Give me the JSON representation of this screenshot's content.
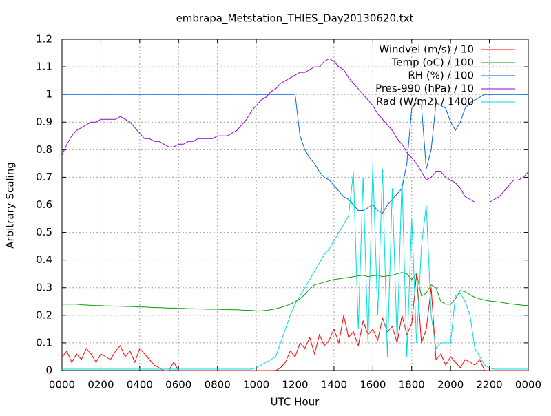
{
  "chart_data": {
    "type": "line",
    "title": "embrapa_Metstation_THIES_Day20130620.txt",
    "xlabel": "UTC Hour",
    "ylabel": "Arbitrary Scaling",
    "xlim": [
      0,
      24
    ],
    "ylim": [
      0,
      1.2
    ],
    "xticks": [
      {
        "value": 0,
        "label": "0000"
      },
      {
        "value": 2,
        "label": "0200"
      },
      {
        "value": 4,
        "label": "0400"
      },
      {
        "value": 6,
        "label": "0600"
      },
      {
        "value": 8,
        "label": "0800"
      },
      {
        "value": 10,
        "label": "1000"
      },
      {
        "value": 12,
        "label": "1200"
      },
      {
        "value": 14,
        "label": "1400"
      },
      {
        "value": 16,
        "label": "1600"
      },
      {
        "value": 18,
        "label": "1800"
      },
      {
        "value": 20,
        "label": "2000"
      },
      {
        "value": 22,
        "label": "2200"
      },
      {
        "value": 24,
        "label": "0000"
      }
    ],
    "yticks": [
      0,
      0.1,
      0.2,
      0.3,
      0.4,
      0.5,
      0.6,
      0.7,
      0.8,
      0.9,
      1,
      1.1,
      1.2
    ],
    "grid": true,
    "legend": "top-right",
    "x": [
      0,
      0.25,
      0.5,
      0.75,
      1,
      1.25,
      1.5,
      1.75,
      2,
      2.25,
      2.5,
      2.75,
      3,
      3.25,
      3.5,
      3.75,
      4,
      4.25,
      4.5,
      4.75,
      5,
      5.25,
      5.5,
      5.75,
      6,
      6.25,
      6.5,
      6.75,
      7,
      7.25,
      7.5,
      7.75,
      8,
      8.25,
      8.5,
      8.75,
      9,
      9.25,
      9.5,
      9.75,
      10,
      10.25,
      10.5,
      10.75,
      11,
      11.25,
      11.5,
      11.75,
      12,
      12.25,
      12.5,
      12.75,
      13,
      13.25,
      13.5,
      13.75,
      14,
      14.25,
      14.5,
      14.75,
      15,
      15.25,
      15.5,
      15.75,
      16,
      16.25,
      16.5,
      16.75,
      17,
      17.25,
      17.5,
      17.75,
      18,
      18.25,
      18.5,
      18.75,
      19,
      19.25,
      19.5,
      19.75,
      20,
      20.25,
      20.5,
      20.75,
      21,
      21.25,
      21.5,
      21.75,
      22,
      22.25,
      22.5,
      22.75,
      23,
      23.25,
      23.5,
      23.75,
      24
    ],
    "series": [
      {
        "name": "Windvel (m/s) / 10",
        "color": "#ff0000",
        "values": [
          0.05,
          0.07,
          0.03,
          0.06,
          0.04,
          0.08,
          0.06,
          0.03,
          0.06,
          0.05,
          0.04,
          0.07,
          0.09,
          0.05,
          0.07,
          0.03,
          0.08,
          0.06,
          0.04,
          0.02,
          0.01,
          0,
          0,
          0.03,
          0,
          0,
          0,
          0,
          0,
          0,
          0,
          0,
          0,
          0,
          0,
          0,
          0,
          0,
          0,
          0,
          0,
          0,
          0,
          0,
          0,
          0.01,
          0.03,
          0.07,
          0.05,
          0.1,
          0.08,
          0.12,
          0.06,
          0.13,
          0.09,
          0.11,
          0.15,
          0.1,
          0.2,
          0.12,
          0.14,
          0.09,
          0.18,
          0.13,
          0.15,
          0.11,
          0.19,
          0.14,
          0.16,
          0.1,
          0.2,
          0.13,
          0.17,
          0.35,
          0.1,
          0.15,
          0.3,
          0.04,
          0.06,
          0.02,
          0.05,
          0.03,
          0.01,
          0.04,
          0.03,
          0.02,
          0.04,
          0,
          0,
          0,
          0,
          0,
          0,
          0,
          0,
          0,
          0
        ]
      },
      {
        "name": "Temp (oC) / 100",
        "color": "#00a000",
        "values": [
          0.24,
          0.24,
          0.24,
          0.24,
          0.238,
          0.237,
          0.236,
          0.235,
          0.235,
          0.234,
          0.234,
          0.233,
          0.233,
          0.232,
          0.232,
          0.231,
          0.23,
          0.23,
          0.229,
          0.228,
          0.228,
          0.227,
          0.226,
          0.226,
          0.225,
          0.225,
          0.224,
          0.224,
          0.223,
          0.223,
          0.222,
          0.222,
          0.222,
          0.221,
          0.221,
          0.22,
          0.22,
          0.219,
          0.218,
          0.218,
          0.216,
          0.216,
          0.218,
          0.22,
          0.224,
          0.228,
          0.234,
          0.24,
          0.25,
          0.26,
          0.275,
          0.295,
          0.31,
          0.315,
          0.32,
          0.325,
          0.33,
          0.332,
          0.335,
          0.337,
          0.34,
          0.343,
          0.345,
          0.34,
          0.343,
          0.345,
          0.34,
          0.342,
          0.345,
          0.35,
          0.355,
          0.35,
          0.33,
          0.35,
          0.27,
          0.28,
          0.31,
          0.3,
          0.25,
          0.24,
          0.24,
          0.26,
          0.29,
          0.285,
          0.275,
          0.265,
          0.26,
          0.255,
          0.252,
          0.25,
          0.248,
          0.245,
          0.242,
          0.24,
          0.238,
          0.236,
          0.235
        ]
      },
      {
        "name": "RH (%) / 100",
        "color": "#0066e0",
        "values": [
          1,
          1,
          1,
          1,
          1,
          1,
          1,
          1,
          1,
          1,
          1,
          1,
          1,
          1,
          1,
          1,
          1,
          1,
          1,
          1,
          1,
          1,
          1,
          1,
          1,
          1,
          1,
          1,
          1,
          1,
          1,
          1,
          1,
          1,
          1,
          1,
          1,
          1,
          1,
          1,
          1,
          1,
          1,
          1,
          1,
          1,
          1,
          1,
          1,
          0.85,
          0.8,
          0.77,
          0.75,
          0.72,
          0.7,
          0.69,
          0.67,
          0.65,
          0.63,
          0.62,
          0.6,
          0.58,
          0.58,
          0.59,
          0.6,
          0.58,
          0.57,
          0.6,
          0.62,
          0.64,
          0.66,
          0.75,
          0.95,
          0.97,
          0.96,
          0.73,
          0.8,
          0.97,
          0.96,
          0.95,
          0.9,
          0.87,
          0.9,
          0.95,
          0.97,
          0.98,
          0.99,
          1,
          1,
          1,
          1,
          1,
          1,
          1,
          1,
          1,
          1
        ]
      },
      {
        "name": "Pres-990 (hPa) / 10",
        "color": "#9400d3",
        "values": [
          0.78,
          0.82,
          0.85,
          0.87,
          0.88,
          0.89,
          0.9,
          0.9,
          0.91,
          0.91,
          0.91,
          0.91,
          0.92,
          0.91,
          0.9,
          0.88,
          0.86,
          0.84,
          0.84,
          0.83,
          0.83,
          0.82,
          0.81,
          0.81,
          0.82,
          0.82,
          0.83,
          0.83,
          0.84,
          0.84,
          0.84,
          0.84,
          0.85,
          0.85,
          0.85,
          0.86,
          0.87,
          0.89,
          0.91,
          0.94,
          0.96,
          0.98,
          0.99,
          1.01,
          1.02,
          1.04,
          1.05,
          1.06,
          1.07,
          1.08,
          1.08,
          1.09,
          1.1,
          1.1,
          1.12,
          1.13,
          1.12,
          1.1,
          1.09,
          1.06,
          1.04,
          1.02,
          1,
          0.98,
          0.96,
          0.93,
          0.91,
          0.89,
          0.87,
          0.84,
          0.82,
          0.79,
          0.77,
          0.75,
          0.72,
          0.69,
          0.7,
          0.72,
          0.72,
          0.7,
          0.69,
          0.68,
          0.66,
          0.63,
          0.62,
          0.61,
          0.61,
          0.61,
          0.61,
          0.62,
          0.63,
          0.65,
          0.67,
          0.69,
          0.69,
          0.7,
          0.72
        ]
      },
      {
        "name": "Rad (W/m2) / 1400",
        "color": "#00dcdc",
        "values": [
          0.005,
          0.005,
          0.005,
          0.005,
          0.005,
          0.005,
          0.005,
          0.005,
          0.005,
          0.005,
          0.005,
          0.005,
          0.005,
          0.005,
          0.005,
          0.005,
          0.005,
          0.005,
          0.005,
          0.005,
          0.005,
          0.005,
          0.005,
          0.005,
          0.005,
          0.005,
          0.005,
          0.005,
          0.005,
          0.005,
          0.005,
          0.005,
          0.005,
          0.005,
          0.005,
          0.005,
          0.005,
          0.005,
          0.005,
          0.005,
          0.01,
          0.02,
          0.03,
          0.04,
          0.05,
          0.1,
          0.15,
          0.2,
          0.24,
          0.27,
          0.3,
          0.33,
          0.36,
          0.39,
          0.42,
          0.44,
          0.47,
          0.5,
          0.53,
          0.56,
          0.72,
          0.15,
          0.7,
          0.1,
          0.75,
          0.2,
          0.73,
          0.05,
          0.66,
          0.1,
          0.7,
          0.05,
          0.55,
          0.1,
          0.45,
          0.6,
          0.2,
          0.08,
          0.1,
          0.1,
          0.1,
          0.27,
          0.28,
          0.25,
          0.2,
          0.08,
          0.05,
          0.02,
          0.01,
          0.005,
          0.005,
          0.005,
          0.005,
          0.005,
          0.005,
          0.005,
          0.005
        ]
      }
    ]
  }
}
